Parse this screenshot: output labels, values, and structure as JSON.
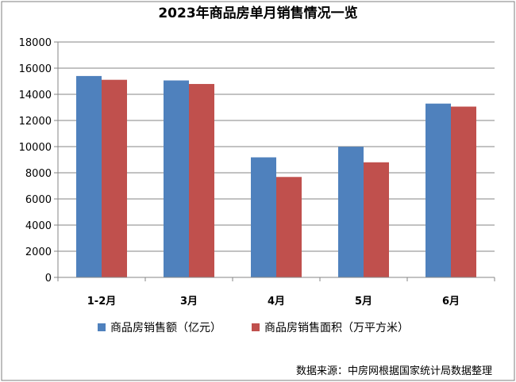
{
  "chart_data": {
    "type": "bar",
    "title": "2023年商品房单月销售情况一览",
    "categories": [
      "1-2月",
      "3月",
      "4月",
      "5月",
      "6月"
    ],
    "series": [
      {
        "name": "商品房销售额（亿元）",
        "values": [
          15400,
          15060,
          9180,
          9990,
          13290
        ],
        "color": "#4f81bd"
      },
      {
        "name": "商品房销售面积（万平方米）",
        "values": [
          15110,
          14790,
          7680,
          8800,
          13060
        ],
        "color": "#c0504d"
      }
    ],
    "ylim": [
      0,
      18000
    ],
    "yticks": [
      0,
      2000,
      4000,
      6000,
      8000,
      10000,
      12000,
      14000,
      16000,
      18000
    ],
    "grid": true,
    "legend_position": "bottom"
  },
  "source": "数据来源：中房网根据国家统计局数据整理"
}
